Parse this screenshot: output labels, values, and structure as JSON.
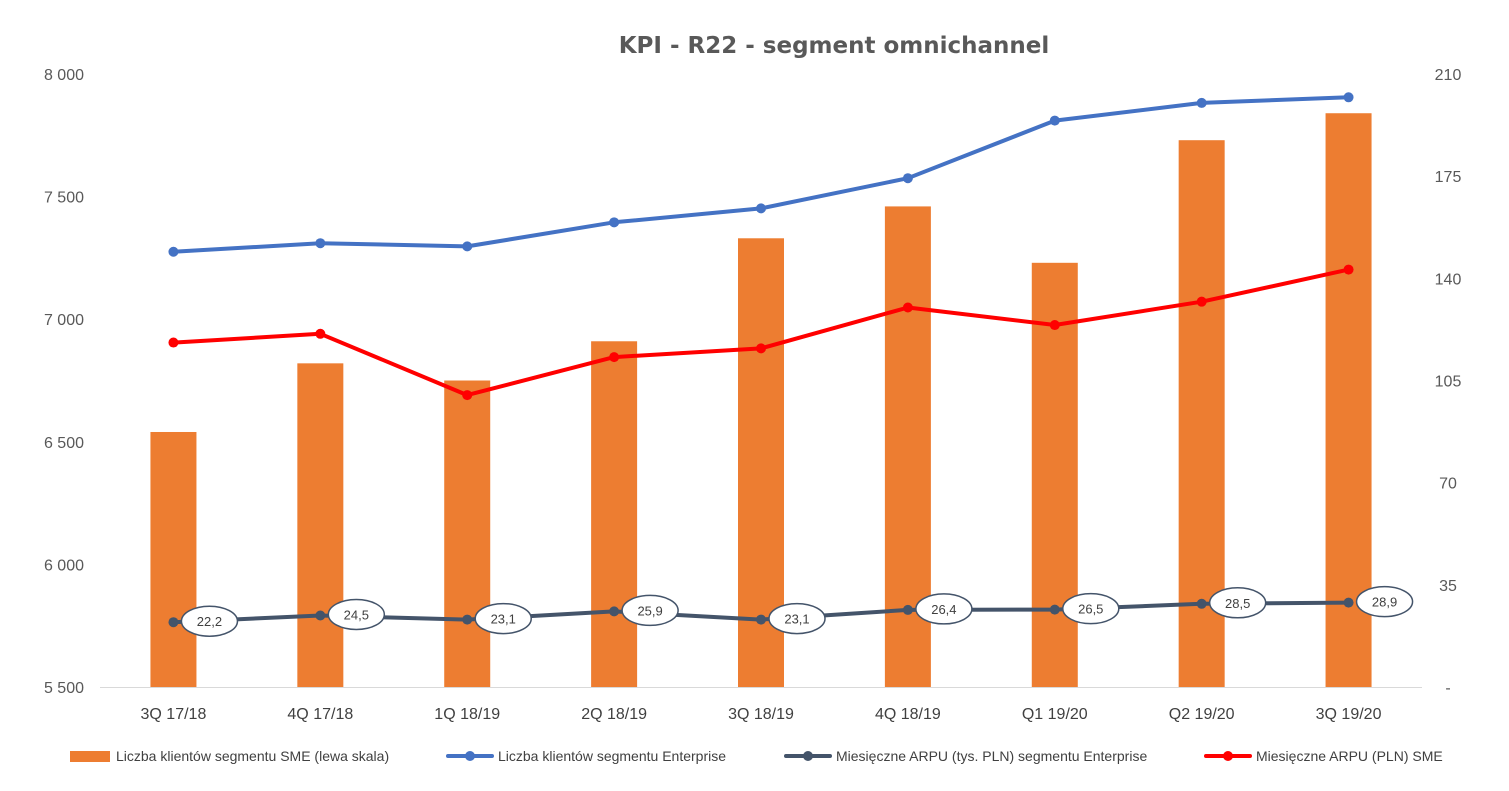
{
  "chart_data": {
    "type": "bar",
    "title": "KPI - R22 - segment omnichannel",
    "categories": [
      "3Q 17/18",
      "4Q 17/18",
      "1Q 18/19",
      "2Q 18/19",
      "3Q 18/19",
      "4Q 18/19",
      "Q1 19/20",
      "Q2 19/20",
      "3Q 19/20"
    ],
    "y_left": {
      "min": 5500,
      "max": 8000,
      "ticks": [
        "5 500",
        "6 000",
        "6 500",
        "7 000",
        "7 500",
        "8 000"
      ]
    },
    "y_right": {
      "min": 0,
      "max": 210,
      "ticks": [
        "-",
        "35",
        "70",
        "105",
        "140",
        "175",
        "210"
      ]
    },
    "grid": false,
    "legend_position": "bottom",
    "series": [
      {
        "name": "Liczba klientów segmentu SME (lewa skala)",
        "type": "bar",
        "axis": "left",
        "color": "#ED7D31",
        "values": [
          6540,
          6820,
          6750,
          6910,
          7330,
          7460,
          7230,
          7730,
          7840
        ]
      },
      {
        "name": "Liczba klientów segmentu Enterprise",
        "type": "line",
        "axis": "left",
        "color": "#4472C4",
        "values": [
          7275,
          7310,
          7297,
          7395,
          7452,
          7575,
          7810,
          7882,
          7905
        ]
      },
      {
        "name": "Miesięczne ARPU (tys. PLN) segmentu Enterprise",
        "type": "line",
        "axis": "right",
        "color": "#44546A",
        "values": [
          22.2,
          24.5,
          23.1,
          25.9,
          23.1,
          26.4,
          26.5,
          28.5,
          28.9
        ],
        "labels": [
          "22,2",
          "24,5",
          "23,1",
          "25,9",
          "23,1",
          "26,4",
          "26,5",
          "28,5",
          "28,9"
        ]
      },
      {
        "name": "Miesięczne ARPU (PLN) SME",
        "type": "line",
        "axis": "right",
        "color": "#FF0000",
        "values": [
          118,
          121,
          100,
          113,
          116,
          130,
          124,
          132,
          143
        ]
      }
    ]
  }
}
